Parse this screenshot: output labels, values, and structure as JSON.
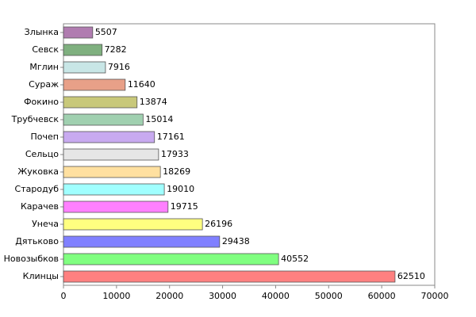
{
  "chart_data": {
    "type": "hbar",
    "categories": [
      "Злынка",
      "Севск",
      "Мглин",
      "Сураж",
      "Фокино",
      "Трубчевск",
      "Почеп",
      "Сельцо",
      "Жуковка",
      "Стародуб",
      "Карачев",
      "Унеча",
      "Дятьково",
      "Новозыбков",
      "Клинцы"
    ],
    "values": [
      5507,
      7282,
      7916,
      11640,
      13874,
      15014,
      17161,
      17933,
      18269,
      19010,
      19715,
      26196,
      29438,
      40552,
      62510
    ],
    "colors": [
      "#b07cb0",
      "#7fb07f",
      "#c8e6e6",
      "#e8a088",
      "#c8c87a",
      "#a0d0b0",
      "#c8aaf0",
      "#e6e6e6",
      "#ffe0a0",
      "#a0ffff",
      "#ff80ff",
      "#ffff80",
      "#8080ff",
      "#80ff80",
      "#ff8080"
    ],
    "xlim": [
      0,
      70000
    ],
    "xticks": [
      0,
      10000,
      20000,
      30000,
      40000,
      50000,
      60000,
      70000
    ]
  }
}
